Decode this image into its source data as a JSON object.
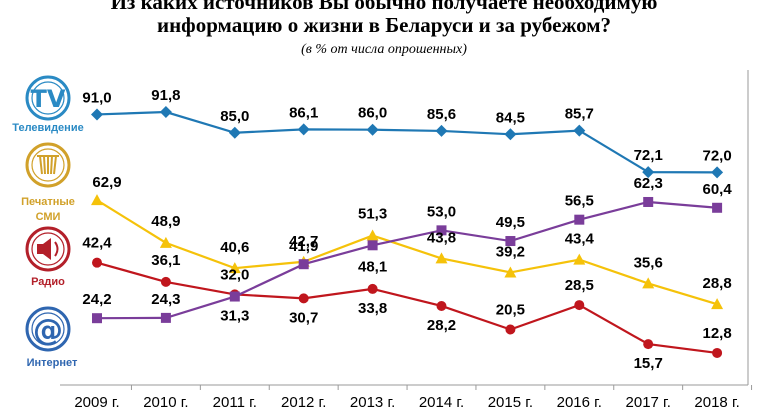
{
  "title_line1": "Из каких источников Вы обычно получаете необходимую",
  "title_line2": "информацию о жизни в Беларуси и за рубежом?",
  "subtitle": "(в % от числа опрошенных)",
  "colors": {
    "tv": "#1f78b4",
    "print": "#f5c20a",
    "radio": "#c0161d",
    "internet": "#7a3d9a",
    "icon_blue": "#2a8ac4",
    "icon_gold": "#d1a12a",
    "icon_red": "#b3202a",
    "icon_internet": "#2f66b0"
  },
  "icons": [
    {
      "name": "tv-icon",
      "symbol": "TV",
      "label_lines": [
        "Телевидение"
      ],
      "color": "#2a8ac4"
    },
    {
      "name": "newspaper-icon",
      "symbol": "",
      "label_lines": [
        "Печатные",
        "СМИ"
      ],
      "color": "#d1a12a"
    },
    {
      "name": "radio-icon",
      "symbol": "",
      "label_lines": [
        "Радио"
      ],
      "color": "#b3202a"
    },
    {
      "name": "internet-icon",
      "symbol": "@",
      "label_lines": [
        "Интернет"
      ],
      "color": "#2f66b0"
    }
  ],
  "chart_data": {
    "type": "line",
    "title": "Из каких источников Вы обычно получаете необходимую информацию о жизни в Беларуси и за рубежом?",
    "subtitle": "(в % от числа опрошенных)",
    "categories": [
      "2009 г.",
      "2010 г.",
      "2011 г.",
      "2012 г.",
      "2013 г.",
      "2014 г.",
      "2015 г.",
      "2016 г.",
      "2017 г.",
      "2018 г."
    ],
    "series": [
      {
        "name": "Телевидение",
        "marker": "diamond",
        "color": "#1f78b4",
        "values": [
          91.0,
          91.8,
          85.0,
          86.1,
          86.0,
          85.6,
          84.5,
          85.7,
          72.1,
          72.0
        ],
        "labels": [
          "91,0",
          "91,8",
          "85,0",
          "86,1",
          "86,0",
          "85,6",
          "84,5",
          "85,7",
          "72,1",
          "72,0"
        ]
      },
      {
        "name": "Печатные СМИ",
        "marker": "triangle",
        "color": "#f5c20a",
        "values": [
          62.9,
          48.9,
          40.6,
          42.7,
          51.3,
          43.8,
          39.2,
          43.4,
          35.6,
          28.8
        ],
        "labels": [
          "62,9",
          "48,9",
          "40,6",
          "42,7",
          "51,3",
          "43,8",
          "39,2",
          "43,4",
          "35,6",
          "28,8"
        ]
      },
      {
        "name": "Радио",
        "marker": "circle",
        "color": "#c0161d",
        "values": [
          42.4,
          36.1,
          32.0,
          30.7,
          33.8,
          28.2,
          20.5,
          28.5,
          15.7,
          12.8
        ],
        "labels": [
          "42,4",
          "36,1",
          "32,0",
          "30,7",
          "33,8",
          "28,2",
          "20,5",
          "28,5",
          "15,7",
          "12,8"
        ]
      },
      {
        "name": "Интернет",
        "marker": "square",
        "color": "#7a3d9a",
        "values": [
          24.2,
          24.3,
          31.3,
          41.9,
          48.1,
          53.0,
          49.5,
          56.5,
          62.3,
          60.4
        ],
        "labels": [
          "24,2",
          "24,3",
          "31,3",
          "41,9",
          "48,1",
          "53,0",
          "49,5",
          "56,5",
          "62,3",
          "60,4"
        ]
      }
    ]
  }
}
